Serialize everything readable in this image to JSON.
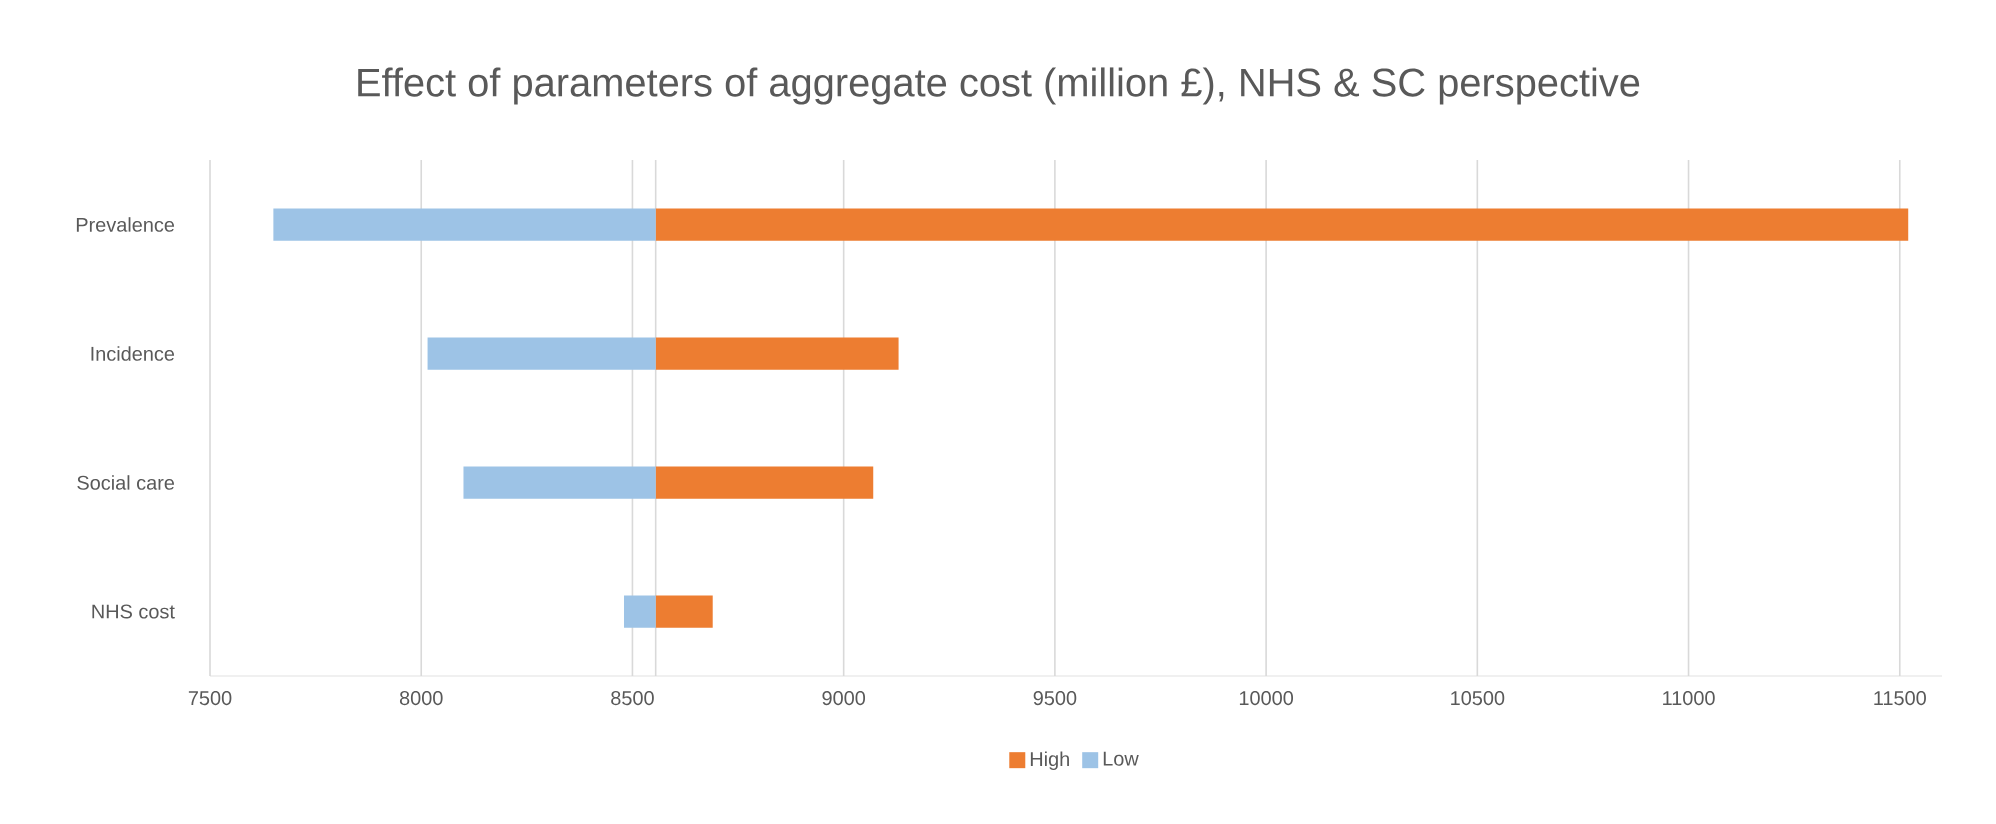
{
  "chart_data": {
    "type": "bar",
    "orientation": "horizontal",
    "title": "Effect of parameters of aggregate cost (million £), NHS & SC perspective",
    "categories": [
      "Prevalence",
      "Incidence",
      "Social care",
      "NHS cost"
    ],
    "series": [
      {
        "name": "High",
        "color": "#ed7d31",
        "base": [
          8555,
          8555,
          8555,
          8555
        ],
        "values": [
          2965,
          575,
          515,
          135
        ]
      },
      {
        "name": "Low",
        "color": "#9dc3e6",
        "base": [
          7650,
          8015,
          8100,
          8480
        ],
        "values": [
          905,
          540,
          455,
          75
        ]
      }
    ],
    "xlim": [
      7500,
      11600
    ],
    "xticks": [
      7500,
      8000,
      8500,
      9000,
      9500,
      10000,
      10500,
      11000,
      11500
    ],
    "ref_lines": [
      {
        "axis": "x",
        "value": 8555,
        "color": "#d9d9d9"
      }
    ],
    "grid": "x",
    "legend": "bottom"
  }
}
